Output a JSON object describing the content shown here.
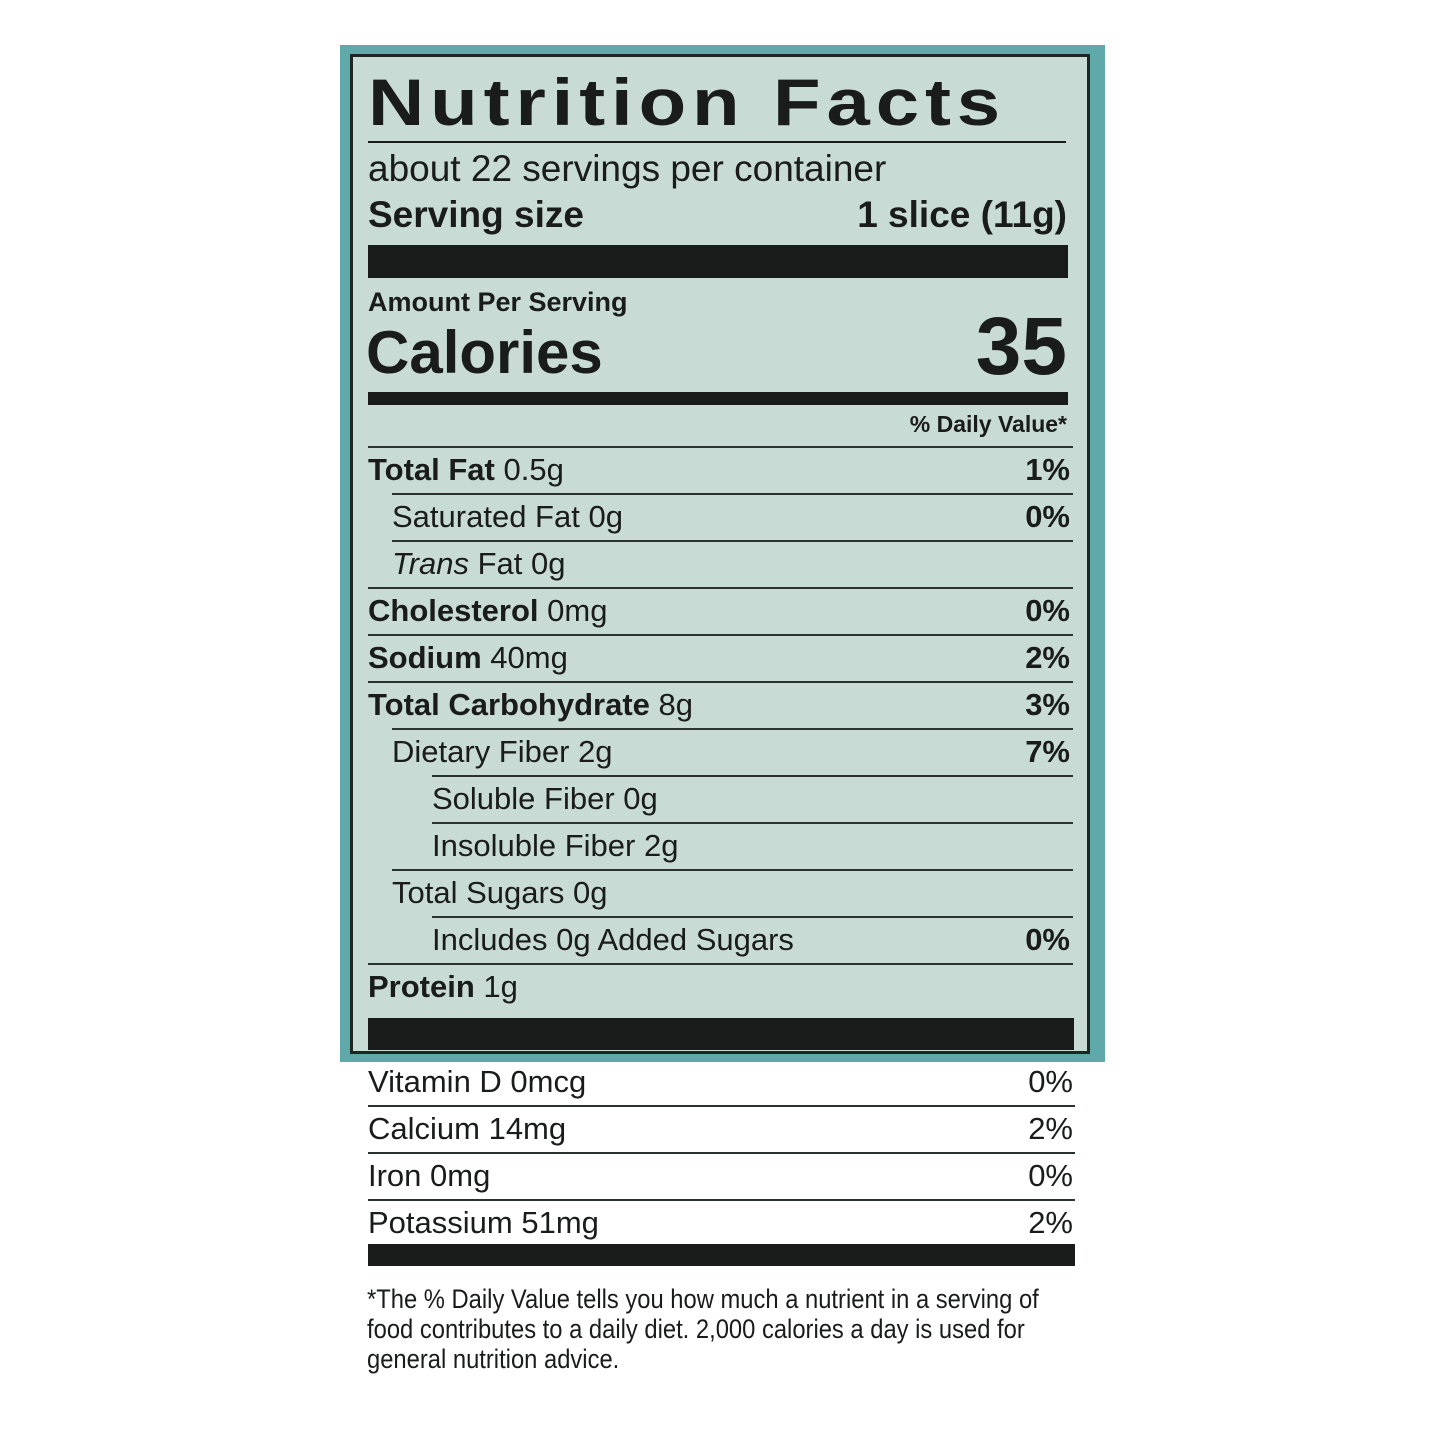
{
  "title": "Nutrition Facts",
  "servings_per_container": "about 22 servings per container",
  "serving_size_label": "Serving size",
  "serving_size_value": "1 slice (11g)",
  "amount_per_serving": "Amount Per Serving",
  "calories_label": "Calories",
  "calories_value": "35",
  "daily_value_header": "% Daily Value*",
  "nutrients": [
    {
      "name": "Total Fat",
      "amount": "0.5g",
      "dv": "1%"
    },
    {
      "name": "Saturated Fat",
      "amount": "0g",
      "dv": "0%"
    },
    {
      "name": "Trans",
      "name_rest": "Fat",
      "amount": "0g",
      "dv": ""
    },
    {
      "name": "Cholesterol",
      "amount": "0mg",
      "dv": "0%"
    },
    {
      "name": "Sodium",
      "amount": "40mg",
      "dv": "2%"
    },
    {
      "name": "Total Carbohydrate",
      "amount": "8g",
      "dv": "3%"
    },
    {
      "name": "Dietary Fiber",
      "amount": "2g",
      "dv": "7%"
    },
    {
      "name": "Soluble Fiber",
      "amount": "0g",
      "dv": ""
    },
    {
      "name": "Insoluble Fiber",
      "amount": "2g",
      "dv": ""
    },
    {
      "name": "Total Sugars",
      "amount": "0g",
      "dv": ""
    },
    {
      "name": "Includes 0g Added Sugars",
      "amount": "",
      "dv": "0%"
    },
    {
      "name": "Protein",
      "amount": "1g",
      "dv": ""
    }
  ],
  "vitamins": [
    {
      "text": "Vitamin D 0mcg",
      "dv": "0%"
    },
    {
      "text": "Calcium 14mg",
      "dv": "2%"
    },
    {
      "text": "Iron 0mg",
      "dv": "0%"
    },
    {
      "text": "Potassium 51mg",
      "dv": "2%"
    }
  ],
  "footnote": "*The % Daily Value tells you how much a nutrient in a serving of food contributes to a daily diet. 2,000 calories a day is used for general nutrition advice.",
  "colors": {
    "panel_border": "#5fa9aa",
    "label_bg": "#c8dbd5",
    "ink": "#1a1c1b"
  }
}
